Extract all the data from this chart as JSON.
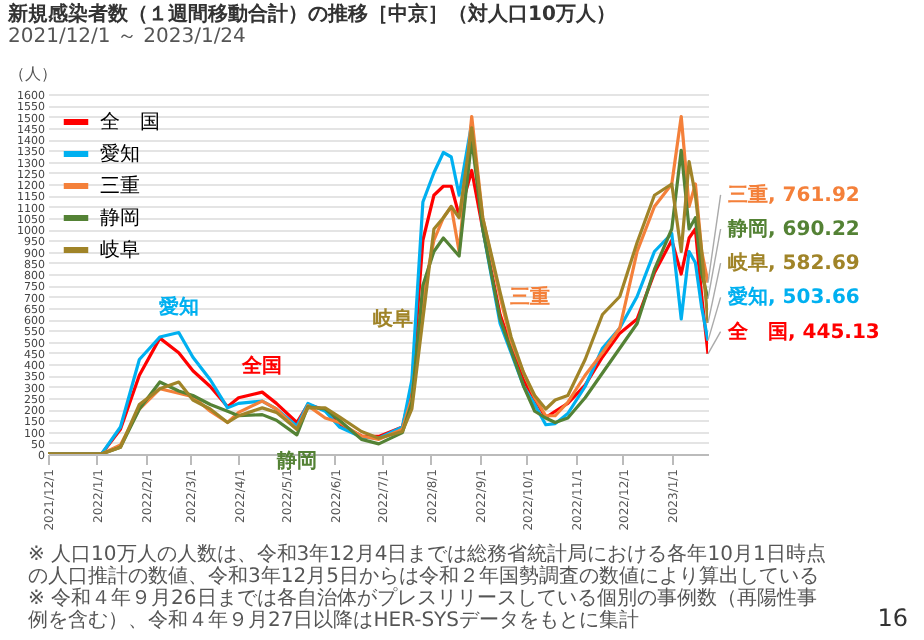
{
  "chart_data": {
    "type": "line",
    "title": "新規感染者数（１週間移動合計）の推移［中京］（対人口10万人）",
    "subtitle": "2021/12/1 ～ 2023/1/24",
    "ylabel": "（人）",
    "x": [
      "2021-12-01",
      "2022-01-04",
      "2022-01-16",
      "2022-01-28",
      "2022-02-10",
      "2022-02-22",
      "2022-03-03",
      "2022-03-14",
      "2022-03-25",
      "2022-04-01",
      "2022-04-16",
      "2022-04-25",
      "2022-05-08",
      "2022-05-15",
      "2022-05-26",
      "2022-06-04",
      "2022-06-18",
      "2022-06-29",
      "2022-07-14",
      "2022-07-20",
      "2022-07-27",
      "2022-08-03",
      "2022-08-09",
      "2022-08-14",
      "2022-08-19",
      "2022-08-27",
      "2022-09-03",
      "2022-09-14",
      "2022-09-21",
      "2022-09-29",
      "2022-10-06",
      "2022-10-13",
      "2022-10-19",
      "2022-10-27",
      "2022-11-07",
      "2022-11-18",
      "2022-11-29",
      "2022-12-10",
      "2022-12-21",
      "2023-01-01",
      "2023-01-07",
      "2023-01-12",
      "2023-01-16",
      "2023-01-20",
      "2023-01-24"
    ],
    "series": [
      {
        "name": "全　国",
        "color": "#ff0000",
        "values": [
          0,
          0,
          110,
          350,
          515,
          450,
          370,
          300,
          210,
          250,
          275,
          225,
          140,
          220,
          195,
          130,
          80,
          78,
          120,
          300,
          950,
          1150,
          1190,
          1190,
          1060,
          1260,
          1000,
          620,
          475,
          325,
          244,
          162,
          190,
          225,
          306,
          431,
          537,
          600,
          806,
          950,
          800,
          960,
          1000,
          700,
          445.13
        ]
      },
      {
        "name": "愛知",
        "color": "#00b0f0",
        "values": [
          0,
          0,
          120,
          420,
          520,
          540,
          430,
          330,
          205,
          225,
          235,
          200,
          125,
          225,
          190,
          120,
          75,
          70,
          120,
          330,
          1120,
          1250,
          1340,
          1320,
          1150,
          1470,
          1000,
          580,
          450,
          300,
          220,
          130,
          135,
          180,
          300,
          470,
          560,
          700,
          900,
          980,
          600,
          900,
          850,
          650,
          503.66
        ]
      },
      {
        "name": "三重",
        "color": "#f4803a",
        "values": [
          0,
          0,
          40,
          200,
          290,
          270,
          255,
          190,
          140,
          185,
          235,
          200,
          110,
          215,
          160,
          140,
          80,
          65,
          110,
          250,
          700,
          950,
          1050,
          1100,
          900,
          1500,
          1050,
          700,
          500,
          360,
          250,
          170,
          170,
          230,
          350,
          450,
          560,
          900,
          1100,
          1200,
          1500,
          1100,
          1200,
          900,
          761.92
        ]
      },
      {
        "name": "静岡",
        "color": "#548235",
        "values": [
          0,
          0,
          30,
          200,
          320,
          280,
          260,
          220,
          190,
          170,
          175,
          150,
          85,
          210,
          200,
          150,
          65,
          45,
          95,
          230,
          750,
          900,
          960,
          920,
          880,
          1400,
          1000,
          600,
          460,
          300,
          190,
          160,
          140,
          160,
          250,
          360,
          470,
          580,
          820,
          1000,
          1350,
          1000,
          1050,
          800,
          690.22
        ]
      },
      {
        "name": "岐阜",
        "color": "#a08428",
        "values": [
          0,
          0,
          30,
          220,
          290,
          320,
          240,
          200,
          140,
          170,
          205,
          185,
          110,
          205,
          205,
          165,
          100,
          70,
          100,
          200,
          600,
          1000,
          1050,
          1100,
          1050,
          1450,
          1050,
          720,
          520,
          360,
          260,
          200,
          240,
          260,
          420,
          620,
          700,
          940,
          1150,
          1200,
          900,
          1300,
          1150,
          900,
          582.69
        ]
      }
    ],
    "xlim": [
      "2021-12-01",
      "2023-01-24"
    ],
    "xticks": [
      {
        "value": "2021-12-01",
        "label": "2021/12/1"
      },
      {
        "value": "2022-01-01",
        "label": "2022/1/1"
      },
      {
        "value": "2022-02-01",
        "label": "2022/2/1"
      },
      {
        "value": "2022-03-01",
        "label": "2022/3/1"
      },
      {
        "value": "2022-04-01",
        "label": "2022/4/1"
      },
      {
        "value": "2022-05-01",
        "label": "2022/5/1"
      },
      {
        "value": "2022-06-01",
        "label": "2022/6/1"
      },
      {
        "value": "2022-07-01",
        "label": "2022/7/1"
      },
      {
        "value": "2022-08-01",
        "label": "2022/8/1"
      },
      {
        "value": "2022-09-01",
        "label": "2022/9/1"
      },
      {
        "value": "2022-10-01",
        "label": "2022/10/1"
      },
      {
        "value": "2022-11-01",
        "label": "2022/11/1"
      },
      {
        "value": "2022-12-01",
        "label": "2022/12/1"
      },
      {
        "value": "2023-01-01",
        "label": "2023/1/1"
      }
    ],
    "ylim": [
      0,
      1600
    ],
    "yticks": [
      0,
      50,
      100,
      150,
      200,
      250,
      300,
      350,
      400,
      450,
      500,
      550,
      600,
      650,
      700,
      750,
      800,
      850,
      900,
      950,
      1000,
      1050,
      1100,
      1150,
      1200,
      1250,
      1300,
      1350,
      1400,
      1450,
      1500,
      1550,
      1600
    ],
    "grid": "y",
    "legend": "top left",
    "marker": "none",
    "line_style": "solid",
    "annotations": [
      {
        "text": "愛知",
        "x": "2022-02-22",
        "y": 540
      },
      {
        "text": "全国",
        "x": "2022-04-16",
        "y": 275
      },
      {
        "text": "静岡",
        "x": "2022-05-08",
        "y": 85
      },
      {
        "text": "岐阜",
        "x": "2022-07-27",
        "y": 600
      },
      {
        "text": "三重",
        "x": "2022-09-14",
        "y": 700
      },
      {
        "text": "三重, 761.92",
        "x": "2023-01-24",
        "y": 761.92
      },
      {
        "text": "静岡, 690.22",
        "x": "2023-01-24",
        "y": 690.22
      },
      {
        "text": "岐阜, 582.69",
        "x": "2023-01-24",
        "y": 582.69
      },
      {
        "text": "愛知, 503.66",
        "x": "2023-01-24",
        "y": 503.66
      },
      {
        "text": "全　国, 445.13",
        "x": "2023-01-24",
        "y": 445.13
      },
      "※ 人口10万人の人数は、令和3年12月4日までは総務省統計局における各年10月1日時点の人口推計の数値、令和3年12月5日からは令和２年国勢調査の数値により算出している",
      "※ 令和４年９月26日までは各自治体がプレスリリースしている個別の事例数（再陽性事例を含む）、令和４年９月27日以降はHER-SYSデータをもとに集計",
      "16"
    ]
  }
}
